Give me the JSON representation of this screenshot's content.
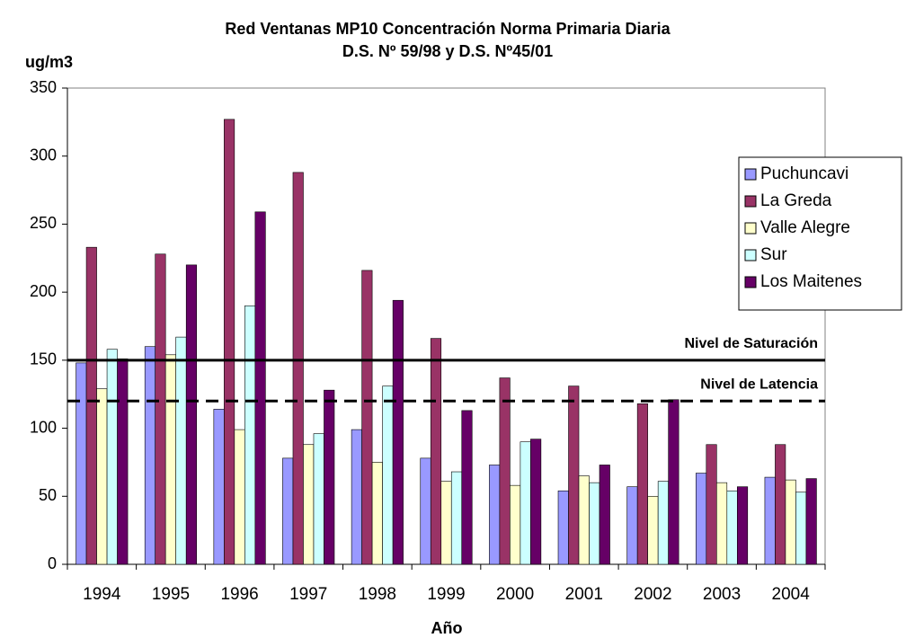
{
  "chart_data": {
    "type": "bar",
    "title": "Red Ventanas MP10 Concentración Norma Primaria Diaria",
    "subtitle": "D.S. Nº 59/98 y D.S. Nº45/01",
    "y_label": "ug/m3",
    "x_label": "Año",
    "categories": [
      "1994",
      "1995",
      "1996",
      "1997",
      "1998",
      "1999",
      "2000",
      "2001",
      "2002",
      "2003",
      "2004"
    ],
    "series": [
      {
        "name": "Puchuncavi",
        "color": "#9999ff",
        "values": [
          148,
          160,
          114,
          78,
          99,
          78,
          73,
          54,
          57,
          67,
          64
        ]
      },
      {
        "name": "La Greda",
        "color": "#993366",
        "values": [
          233,
          228,
          327,
          288,
          216,
          166,
          137,
          131,
          118,
          88,
          88
        ]
      },
      {
        "name": "Valle Alegre",
        "color": "#ffffcc",
        "values": [
          129,
          154,
          99,
          88,
          75,
          61,
          58,
          65,
          50,
          60,
          62
        ]
      },
      {
        "name": "Sur",
        "color": "#ccffff",
        "values": [
          158,
          167,
          190,
          96,
          131,
          68,
          90,
          60,
          61,
          54,
          53
        ]
      },
      {
        "name": "Los Maitenes",
        "color": "#660066",
        "values": [
          151,
          220,
          259,
          128,
          194,
          113,
          92,
          73,
          121,
          57,
          63
        ]
      }
    ],
    "reference_lines": [
      {
        "label": "Nivel de Saturación",
        "value": 150,
        "style": "solid"
      },
      {
        "label": "Nivel de Latencia",
        "value": 120,
        "style": "dashed"
      }
    ],
    "ylim": [
      0,
      350
    ],
    "yticks": [
      0,
      50,
      100,
      150,
      200,
      250,
      300,
      350
    ],
    "legend": "right"
  }
}
